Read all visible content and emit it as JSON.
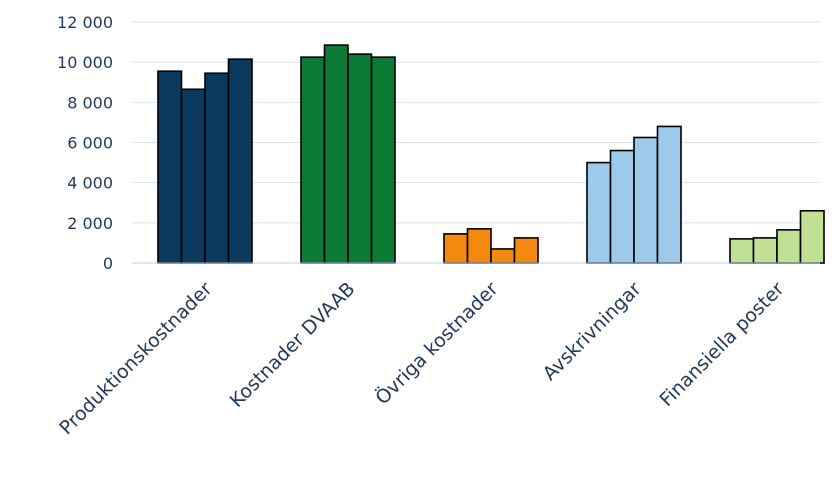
{
  "chart_data": {
    "type": "bar",
    "title": "",
    "xlabel": "",
    "ylabel": "",
    "ylim": [
      0,
      12000
    ],
    "yticks": [
      0,
      2000,
      4000,
      6000,
      8000,
      10000,
      12000
    ],
    "ytick_labels": [
      "0",
      "2 000",
      "4 000",
      "6 000",
      "8 000",
      "10 000",
      "12 000"
    ],
    "grid": true,
    "legend": "none",
    "categories": [
      "Produktionskostnader",
      "Kostnader DVAAB",
      "Övriga kostnader",
      "Avskrivningar",
      "Finansiella poster"
    ],
    "groups": [
      {
        "category": "Produktionskostnader",
        "color": "#0b3a5e",
        "values": [
          9550,
          8650,
          9450,
          10150
        ]
      },
      {
        "category": "Kostnader DVAAB",
        "color": "#0b7a35",
        "values": [
          10250,
          10850,
          10400,
          10250
        ]
      },
      {
        "category": "Övriga kostnader",
        "color": "#f5890f",
        "values": [
          1450,
          1700,
          700,
          1250
        ]
      },
      {
        "category": "Avskrivningar",
        "color": "#9dc9ea",
        "values": [
          5000,
          5600,
          6250,
          6800
        ]
      },
      {
        "category": "Finansiella poster",
        "color": "#bfe095",
        "values": [
          1200,
          1250,
          1650,
          2600
        ]
      }
    ]
  }
}
